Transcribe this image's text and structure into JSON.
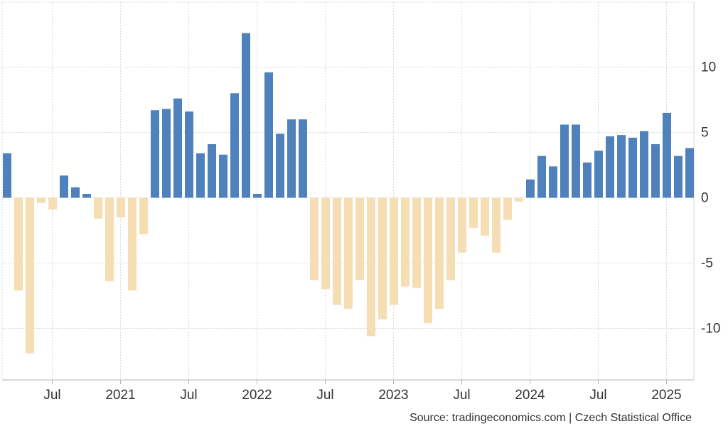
{
  "chart_data": {
    "type": "bar",
    "title": "",
    "xlabel": "",
    "ylabel": "",
    "ylim": [
      -13.8,
      15
    ],
    "y_ticks": [
      10,
      5,
      0,
      -5,
      -10
    ],
    "y_tick_labels": [
      "10",
      "5",
      "0",
      "-5",
      "-10"
    ],
    "x_range": [
      "2020-03",
      "2025-04"
    ],
    "x_ticks": [
      {
        "month": "2020-07",
        "label": "Jul"
      },
      {
        "month": "2021-01",
        "label": "2021"
      },
      {
        "month": "2021-07",
        "label": "Jul"
      },
      {
        "month": "2022-01",
        "label": "2022"
      },
      {
        "month": "2022-07",
        "label": "Jul"
      },
      {
        "month": "2023-01",
        "label": "2023"
      },
      {
        "month": "2023-07",
        "label": "Jul"
      },
      {
        "month": "2024-01",
        "label": "2024"
      },
      {
        "month": "2024-07",
        "label": "Jul"
      },
      {
        "month": "2025-01",
        "label": "2025"
      }
    ],
    "grid": true,
    "colors": {
      "positive": "#4f81bd",
      "negative": "#f5deb3"
    },
    "series": [
      {
        "data": [
          [
            "2020-03",
            3.4
          ],
          [
            "2020-04",
            -7.1
          ],
          [
            "2020-05",
            -11.9
          ],
          [
            "2020-06",
            -0.4
          ],
          [
            "2020-07",
            -0.9
          ],
          [
            "2020-08",
            1.7
          ],
          [
            "2020-09",
            0.8
          ],
          [
            "2020-10",
            0.3
          ],
          [
            "2020-11",
            -1.6
          ],
          [
            "2020-12",
            -6.4
          ],
          [
            "2021-01",
            -1.5
          ],
          [
            "2021-02",
            -7.1
          ],
          [
            "2021-03",
            -2.8
          ],
          [
            "2021-04",
            6.7
          ],
          [
            "2021-05",
            6.8
          ],
          [
            "2021-06",
            7.6
          ],
          [
            "2021-07",
            6.6
          ],
          [
            "2021-08",
            3.4
          ],
          [
            "2021-09",
            4.1
          ],
          [
            "2021-10",
            3.3
          ],
          [
            "2021-11",
            8.0
          ],
          [
            "2021-12",
            12.6
          ],
          [
            "2022-01",
            0.3
          ],
          [
            "2022-02",
            9.6
          ],
          [
            "2022-03",
            4.9
          ],
          [
            "2022-04",
            6.0
          ],
          [
            "2022-05",
            6.0
          ],
          [
            "2022-06",
            -6.3
          ],
          [
            "2022-07",
            -7.0
          ],
          [
            "2022-08",
            -8.2
          ],
          [
            "2022-09",
            -8.5
          ],
          [
            "2022-10",
            -6.3
          ],
          [
            "2022-11",
            -10.6
          ],
          [
            "2022-12",
            -9.3
          ],
          [
            "2023-01",
            -8.2
          ],
          [
            "2023-02",
            -6.8
          ],
          [
            "2023-03",
            -6.9
          ],
          [
            "2023-04",
            -9.6
          ],
          [
            "2023-05",
            -8.5
          ],
          [
            "2023-06",
            -6.3
          ],
          [
            "2023-07",
            -4.2
          ],
          [
            "2023-08",
            -2.3
          ],
          [
            "2023-09",
            -2.9
          ],
          [
            "2023-10",
            -4.2
          ],
          [
            "2023-11",
            -1.7
          ],
          [
            "2023-12",
            -0.3
          ],
          [
            "2024-01",
            1.4
          ],
          [
            "2024-02",
            3.2
          ],
          [
            "2024-03",
            2.4
          ],
          [
            "2024-04",
            5.6
          ],
          [
            "2024-05",
            5.6
          ],
          [
            "2024-06",
            2.7
          ],
          [
            "2024-07",
            3.6
          ],
          [
            "2024-08",
            4.7
          ],
          [
            "2024-09",
            4.8
          ],
          [
            "2024-10",
            4.6
          ],
          [
            "2024-11",
            5.1
          ],
          [
            "2024-12",
            4.1
          ],
          [
            "2025-01",
            6.5
          ],
          [
            "2025-02",
            3.2
          ],
          [
            "2025-03",
            3.8
          ]
        ]
      }
    ]
  },
  "footer": {
    "source": "Source: tradingeconomics.com | Czech Statistical Office"
  }
}
